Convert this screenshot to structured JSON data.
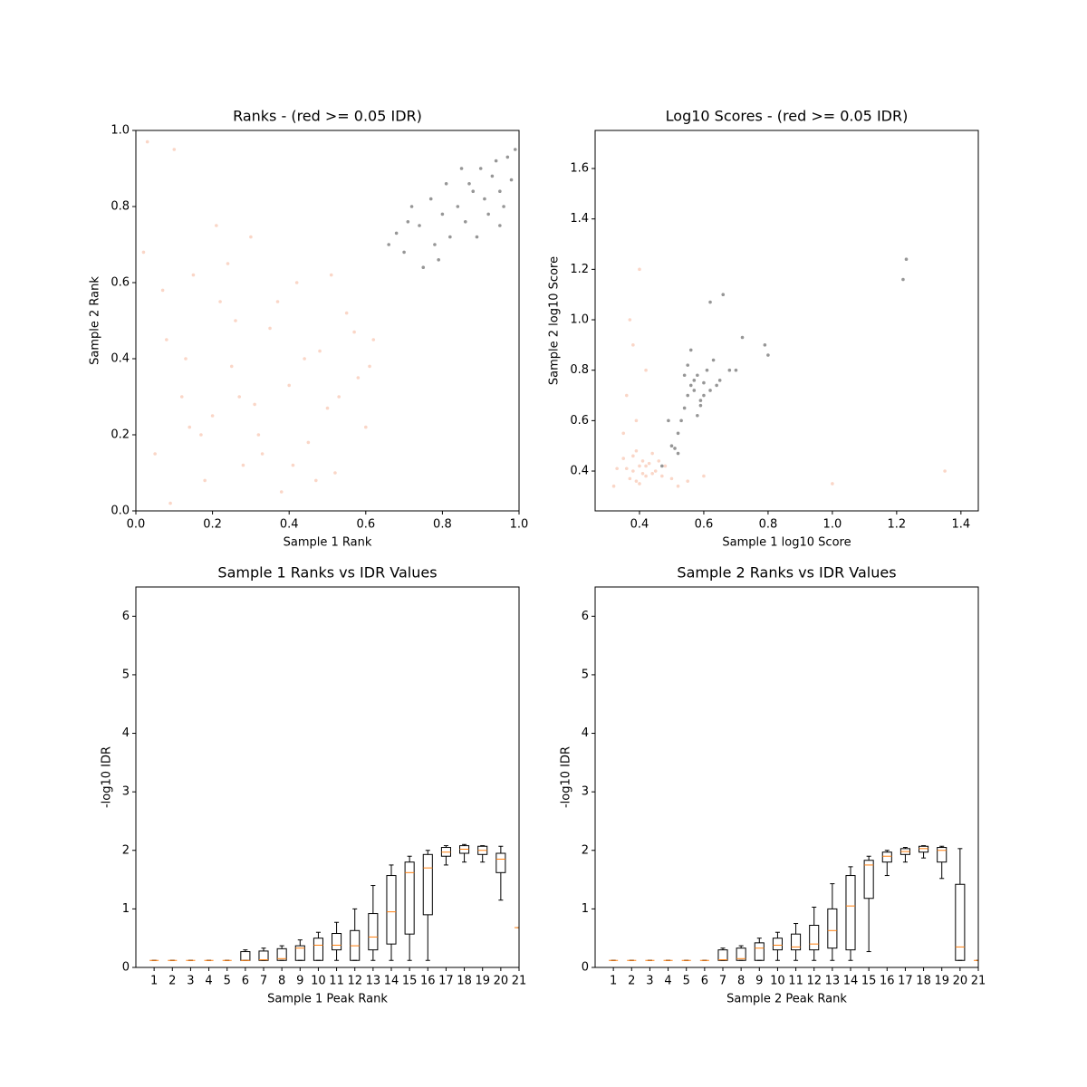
{
  "chart_data": [
    {
      "type": "scatter",
      "title": "Ranks - (red >= 0.05 IDR)",
      "x_label": "Sample 1 Rank",
      "y_label": "Sample 2 Rank",
      "xlim": [
        0,
        1
      ],
      "ylim": [
        0,
        1
      ],
      "xticks": [
        {
          "value": 0,
          "label": "0.0"
        },
        0.2,
        0.4,
        0.6,
        0.8,
        {
          "value": 1,
          "label": "1.0"
        }
      ],
      "yticks": [
        {
          "value": 0,
          "label": "0.0"
        },
        0.2,
        0.4,
        0.6,
        0.8,
        {
          "value": 1,
          "label": "1.0"
        }
      ],
      "series": [
        {
          "color": "#f4a582",
          "x": [
            0.02,
            0.05,
            0.08,
            0.1,
            0.12,
            0.15,
            0.18,
            0.2,
            0.22,
            0.25,
            0.28,
            0.3,
            0.32,
            0.35,
            0.38,
            0.4,
            0.42,
            0.45,
            0.48,
            0.5,
            0.52,
            0.55,
            0.58,
            0.6,
            0.62,
            0.03,
            0.07,
            0.13,
            0.17,
            0.24,
            0.27,
            0.33,
            0.37,
            0.44,
            0.47,
            0.53,
            0.57,
            0.09,
            0.21,
            0.31,
            0.41,
            0.51,
            0.61,
            0.14,
            0.26
          ],
          "values": [
            0.68,
            0.15,
            0.45,
            0.95,
            0.3,
            0.62,
            0.08,
            0.25,
            0.55,
            0.38,
            0.12,
            0.72,
            0.2,
            0.48,
            0.05,
            0.33,
            0.6,
            0.18,
            0.42,
            0.27,
            0.1,
            0.52,
            0.35,
            0.22,
            0.45,
            0.97,
            0.58,
            0.4,
            0.2,
            0.65,
            0.3,
            0.15,
            0.55,
            0.4,
            0.08,
            0.3,
            0.47,
            0.02,
            0.75,
            0.28,
            0.12,
            0.62,
            0.38,
            0.22,
            0.5
          ]
        },
        {
          "color": "#404040",
          "x": [
            0.66,
            0.68,
            0.7,
            0.72,
            0.74,
            0.75,
            0.77,
            0.78,
            0.8,
            0.81,
            0.82,
            0.84,
            0.85,
            0.86,
            0.88,
            0.89,
            0.9,
            0.91,
            0.92,
            0.93,
            0.94,
            0.95,
            0.96,
            0.97,
            0.98,
            0.99,
            0.71,
            0.79,
            0.87,
            0.95
          ],
          "values": [
            0.7,
            0.73,
            0.68,
            0.8,
            0.75,
            0.64,
            0.82,
            0.7,
            0.78,
            0.86,
            0.72,
            0.8,
            0.9,
            0.76,
            0.84,
            0.72,
            0.9,
            0.82,
            0.78,
            0.88,
            0.92,
            0.84,
            0.8,
            0.93,
            0.87,
            0.95,
            0.76,
            0.66,
            0.86,
            0.75
          ]
        }
      ]
    },
    {
      "type": "scatter",
      "title": "Log10 Scores - (red >= 0.05 IDR)",
      "x_label": "Sample 1 log10 Score",
      "y_label": "Sample 2 log10 Score",
      "xlim": [
        0.262,
        1.454
      ],
      "ylim": [
        0.242,
        1.751
      ],
      "xticks": [
        0.4,
        0.6,
        0.8,
        {
          "value": 1,
          "label": "1.0"
        },
        1.2,
        1.4
      ],
      "yticks": [
        0.4,
        0.6,
        0.8,
        {
          "value": 1,
          "label": "1.0"
        },
        1.2,
        1.4,
        1.6
      ],
      "series": [
        {
          "color": "#f4a582",
          "x": [
            0.38,
            0.4,
            0.42,
            0.36,
            0.44,
            0.39,
            0.41,
            0.37,
            0.43,
            0.45,
            0.35,
            0.47,
            0.4,
            0.38,
            0.42,
            0.5,
            0.33,
            0.46,
            0.39,
            0.41,
            0.55,
            0.6,
            0.36,
            0.38,
            0.4,
            0.37,
            0.39,
            0.42,
            0.35,
            0.48,
            1.0,
            1.35,
            0.32,
            0.52,
            0.44
          ],
          "values": [
            0.4,
            0.42,
            0.38,
            0.41,
            0.39,
            0.36,
            0.44,
            0.37,
            0.43,
            0.4,
            0.45,
            0.38,
            0.35,
            0.46,
            0.42,
            0.37,
            0.41,
            0.44,
            0.48,
            0.39,
            0.36,
            0.38,
            0.7,
            0.9,
            1.2,
            1.0,
            0.6,
            0.8,
            0.55,
            0.42,
            0.35,
            0.4,
            0.34,
            0.34,
            0.47
          ]
        },
        {
          "color": "#404040",
          "x": [
            0.5,
            0.52,
            0.54,
            0.55,
            0.56,
            0.57,
            0.58,
            0.59,
            0.6,
            0.61,
            0.62,
            0.53,
            0.55,
            0.57,
            0.59,
            0.51,
            0.52,
            0.54,
            0.56,
            0.58,
            0.6,
            0.63,
            0.65,
            0.68,
            0.72,
            0.79,
            0.8,
            0.62,
            0.66,
            1.22,
            1.23,
            0.47,
            0.49,
            0.64,
            0.7
          ],
          "values": [
            0.5,
            0.47,
            0.65,
            0.7,
            0.74,
            0.72,
            0.78,
            0.68,
            0.75,
            0.8,
            0.72,
            0.6,
            0.82,
            0.76,
            0.66,
            0.49,
            0.55,
            0.78,
            0.88,
            0.62,
            0.7,
            0.84,
            0.76,
            0.8,
            0.93,
            0.9,
            0.86,
            1.07,
            1.1,
            1.16,
            1.24,
            0.42,
            0.6,
            0.74,
            0.8
          ]
        }
      ]
    },
    {
      "type": "box",
      "title": "Sample 1 Ranks vs IDR Values",
      "x_label": "Sample 1 Peak Rank",
      "y_label": "-log10 IDR",
      "xlim": [
        0,
        21
      ],
      "ylim": [
        0,
        6.5
      ],
      "xticks": [
        1,
        2,
        3,
        4,
        5,
        6,
        7,
        8,
        9,
        10,
        11,
        12,
        13,
        14,
        15,
        16,
        17,
        18,
        19,
        20,
        21
      ],
      "yticks": [
        0,
        1,
        2,
        3,
        4,
        5,
        6
      ],
      "color": "#000000",
      "median_color": "#ff7f0e",
      "x": [
        1,
        2,
        3,
        4,
        5,
        6,
        7,
        8,
        9,
        10,
        11,
        12,
        13,
        14,
        15,
        16,
        17,
        18,
        19,
        20,
        21
      ],
      "whislo": [
        0.12,
        0.12,
        0.12,
        0.12,
        0.12,
        0.12,
        0.12,
        0.12,
        0.12,
        0.12,
        0.12,
        0.12,
        0.12,
        0.12,
        0.12,
        0.12,
        1.75,
        1.8,
        1.8,
        1.15,
        0.68
      ],
      "q1": [
        0.12,
        0.12,
        0.12,
        0.12,
        0.12,
        0.12,
        0.12,
        0.12,
        0.12,
        0.12,
        0.3,
        0.12,
        0.3,
        0.4,
        0.57,
        0.9,
        1.9,
        1.95,
        1.93,
        1.62,
        0.68
      ],
      "med": [
        0.12,
        0.12,
        0.12,
        0.12,
        0.12,
        0.12,
        0.13,
        0.15,
        0.33,
        0.38,
        0.38,
        0.37,
        0.52,
        0.95,
        1.62,
        1.7,
        1.97,
        2.02,
        2.0,
        1.85,
        0.68
      ],
      "q3": [
        0.12,
        0.12,
        0.12,
        0.12,
        0.12,
        0.27,
        0.28,
        0.32,
        0.37,
        0.5,
        0.58,
        0.63,
        0.92,
        1.57,
        1.8,
        1.93,
        2.05,
        2.08,
        2.07,
        1.95,
        0.68
      ],
      "whishi": [
        0.12,
        0.12,
        0.12,
        0.12,
        0.12,
        0.3,
        0.33,
        0.37,
        0.47,
        0.6,
        0.77,
        1.0,
        1.4,
        1.75,
        1.9,
        2.0,
        2.08,
        2.1,
        2.08,
        2.07,
        0.68
      ]
    },
    {
      "type": "box",
      "title": "Sample 2 Ranks vs IDR Values",
      "x_label": "Sample 2 Peak Rank",
      "y_label": "-log10 IDR",
      "xlim": [
        0,
        21
      ],
      "ylim": [
        0,
        6.5
      ],
      "xticks": [
        1,
        2,
        3,
        4,
        5,
        6,
        7,
        8,
        9,
        10,
        11,
        12,
        13,
        14,
        15,
        16,
        17,
        18,
        19,
        20,
        21
      ],
      "yticks": [
        0,
        1,
        2,
        3,
        4,
        5,
        6
      ],
      "color": "#000000",
      "median_color": "#ff7f0e",
      "x": [
        1,
        2,
        3,
        4,
        5,
        6,
        7,
        8,
        9,
        10,
        11,
        12,
        13,
        14,
        15,
        16,
        17,
        18,
        19,
        20,
        21
      ],
      "whislo": [
        0.12,
        0.12,
        0.12,
        0.12,
        0.12,
        0.12,
        0.12,
        0.12,
        0.12,
        0.12,
        0.12,
        0.12,
        0.12,
        0.12,
        0.27,
        1.57,
        1.8,
        1.87,
        1.52,
        0.12,
        0.12
      ],
      "q1": [
        0.12,
        0.12,
        0.12,
        0.12,
        0.12,
        0.12,
        0.12,
        0.12,
        0.12,
        0.3,
        0.3,
        0.3,
        0.33,
        0.3,
        1.18,
        1.8,
        1.93,
        1.97,
        1.8,
        0.12,
        0.12
      ],
      "med": [
        0.12,
        0.12,
        0.12,
        0.12,
        0.12,
        0.12,
        0.13,
        0.15,
        0.33,
        0.38,
        0.35,
        0.4,
        0.63,
        1.05,
        1.75,
        1.9,
        1.98,
        2.03,
        2.0,
        0.35,
        0.12
      ],
      "q3": [
        0.12,
        0.12,
        0.12,
        0.12,
        0.12,
        0.12,
        0.3,
        0.33,
        0.42,
        0.5,
        0.57,
        0.72,
        1.0,
        1.57,
        1.83,
        1.97,
        2.03,
        2.07,
        2.05,
        1.42,
        0.12
      ],
      "whishi": [
        0.12,
        0.12,
        0.12,
        0.12,
        0.12,
        0.12,
        0.33,
        0.37,
        0.5,
        0.6,
        0.75,
        1.03,
        1.43,
        1.72,
        1.9,
        2.0,
        2.05,
        2.08,
        2.07,
        2.03,
        0.12
      ]
    }
  ]
}
